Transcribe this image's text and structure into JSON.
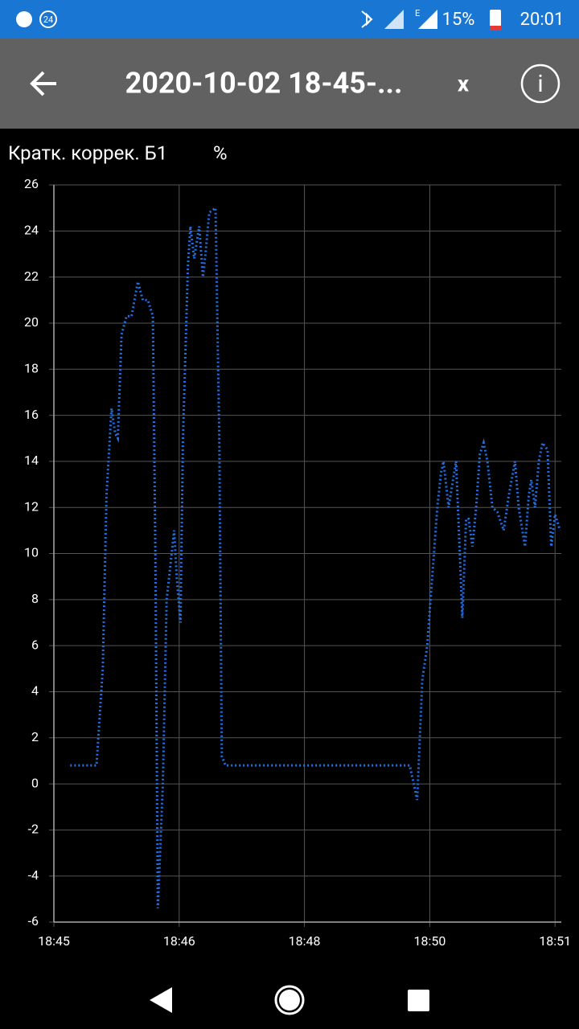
{
  "status_bar": {
    "badge": "24",
    "network": "E",
    "battery": "15%",
    "time": "20:01"
  },
  "app_bar": {
    "title": "2020-10-02 18-45-...",
    "close": "x",
    "info": "i"
  },
  "chart_data": {
    "type": "line",
    "title": "Кратк. коррек. Б1",
    "unit": "%",
    "color": "#1f6fe5",
    "x": [
      0.13,
      0.34,
      0.39,
      0.42,
      0.46,
      0.49,
      0.51,
      0.54,
      0.58,
      0.62,
      0.67,
      0.71,
      0.75,
      0.79,
      0.81,
      0.83,
      0.87,
      0.9,
      0.94,
      0.96,
      0.98,
      1.01,
      1.03,
      1.07,
      1.09,
      1.12,
      1.16,
      1.19,
      1.21,
      1.24,
      1.29,
      1.32,
      1.34,
      1.37,
      2.84,
      2.9,
      2.94,
      2.98,
      3.02,
      3.06,
      3.09,
      3.11,
      3.15,
      3.18,
      3.21,
      3.24,
      3.26,
      3.29,
      3.31,
      3.34,
      3.37,
      3.4,
      3.43,
      3.46,
      3.5,
      3.54,
      3.59,
      3.63,
      3.68,
      3.71,
      3.76,
      3.79,
      3.81,
      3.84,
      3.87,
      3.9,
      3.94,
      3.97,
      4.0,
      4.04
    ],
    "values": [
      0.8,
      0.8,
      5,
      12.5,
      16.3,
      15.2,
      15,
      19.5,
      20.3,
      20.3,
      21.8,
      21,
      21,
      20.3,
      10,
      -5.4,
      0,
      8,
      10,
      11,
      9,
      7,
      15,
      22.5,
      24.2,
      22.8,
      24.2,
      22,
      23,
      24.8,
      25,
      15,
      1.2,
      0.8,
      0.8,
      -0.7,
      4.5,
      6,
      9,
      12,
      13.5,
      14,
      12,
      13,
      14,
      10,
      7.2,
      11.5,
      11.5,
      10.3,
      12,
      14.3,
      14.8,
      14,
      12,
      11.8,
      11,
      12.5,
      14,
      12,
      10.3,
      12.5,
      13.2,
      12,
      14,
      14.8,
      14.5,
      10.3,
      11.7,
      11
    ],
    "xlim": [
      0,
      4.05
    ],
    "xticks": [
      {
        "value": 0,
        "label": "18:45"
      },
      {
        "value": 1,
        "label": "18:46"
      },
      {
        "value": 2,
        "label": "18:48"
      },
      {
        "value": 3,
        "label": "18:50"
      },
      {
        "value": 4,
        "label": "18:51"
      }
    ],
    "ylim": [
      -6,
      26
    ],
    "yticks": [
      -6,
      -4,
      -2,
      0,
      2,
      4,
      6,
      8,
      10,
      12,
      14,
      16,
      18,
      20,
      22,
      24,
      26
    ],
    "grid": true
  }
}
